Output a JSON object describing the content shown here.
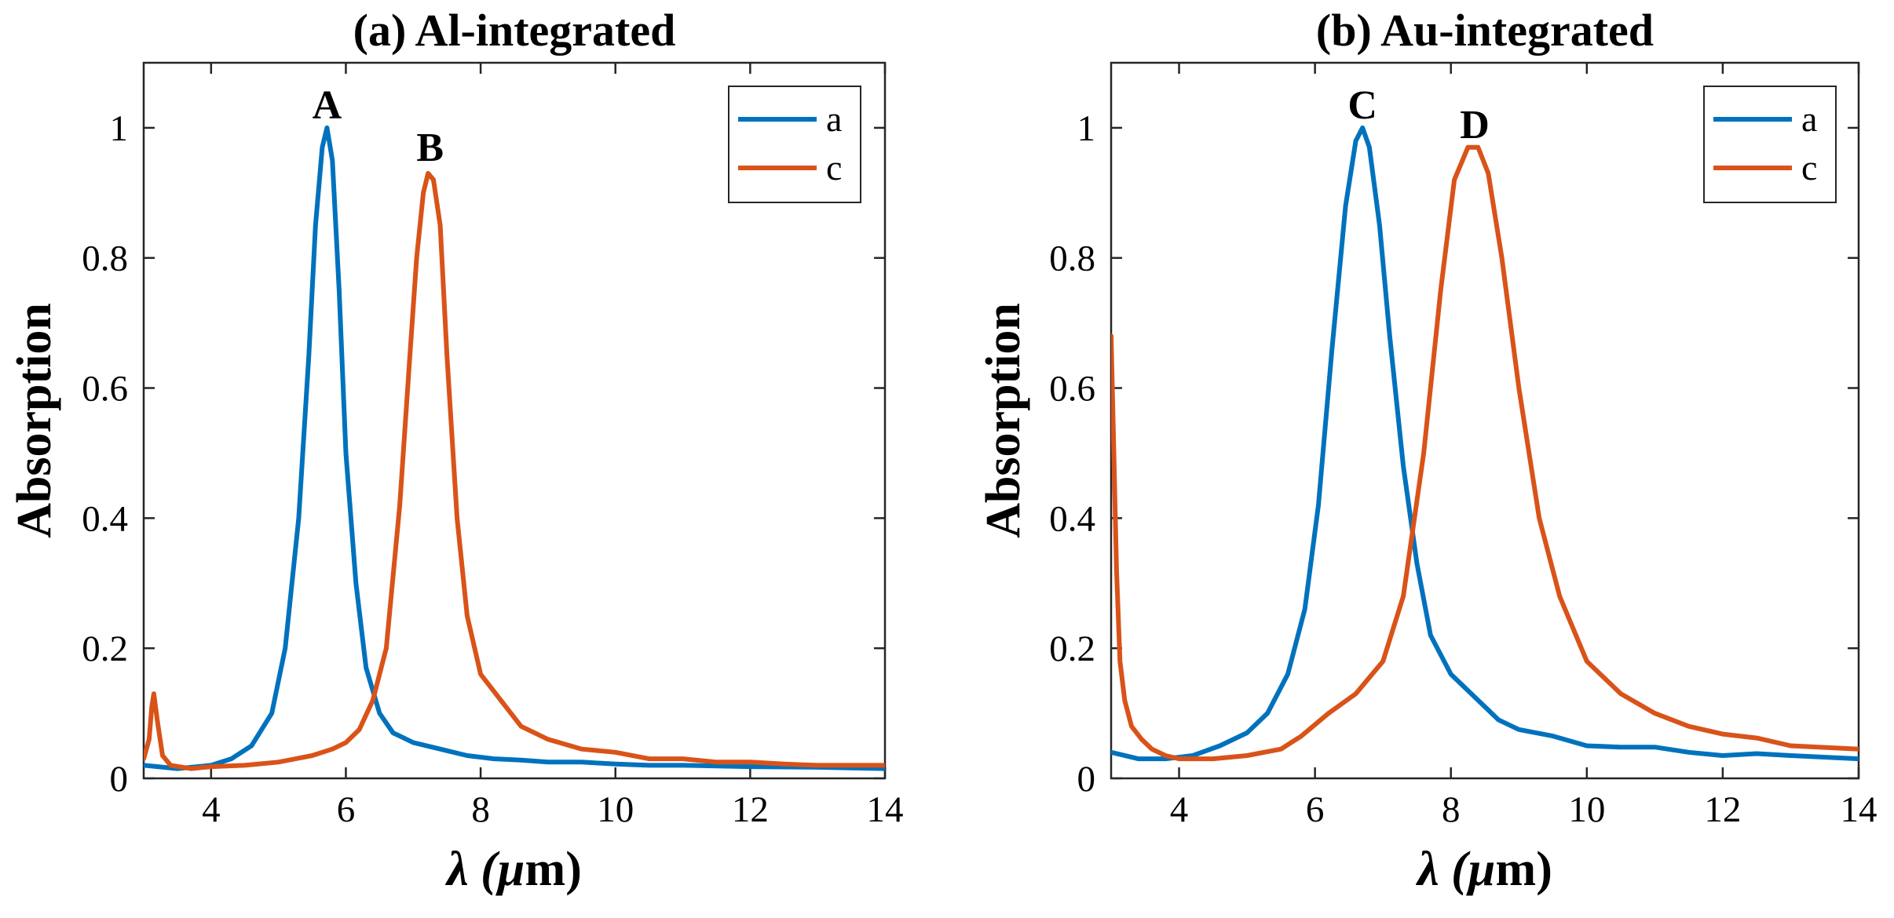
{
  "chart_data": [
    {
      "type": "line",
      "title": "(a) Al-integrated",
      "xlabel": "λ (µm)",
      "xlabel_parts": {
        "symbol": "λ",
        "unit": "(µm)"
      },
      "ylabel": "Absorption",
      "xlim": [
        3,
        14
      ],
      "ylim": [
        0,
        1.1
      ],
      "xticks": [
        4,
        6,
        8,
        10,
        12,
        14
      ],
      "xtick_labels": [
        "4",
        "6",
        "8",
        "10",
        "12",
        "14"
      ],
      "yticks": [
        0,
        0.2,
        0.4,
        0.6,
        0.8,
        1
      ],
      "ytick_labels": [
        "0",
        "0.2",
        "0.4",
        "0.6",
        "0.8",
        "1"
      ],
      "legend": {
        "position": "top-right",
        "entries": [
          "a",
          "c"
        ]
      },
      "series": [
        {
          "name": "a",
          "color": "#0072BD",
          "x": [
            3.0,
            3.5,
            4.0,
            4.3,
            4.6,
            4.9,
            5.1,
            5.3,
            5.45,
            5.55,
            5.65,
            5.72,
            5.8,
            5.9,
            6.0,
            6.15,
            6.3,
            6.5,
            6.7,
            7.0,
            7.4,
            7.8,
            8.2,
            8.6,
            9.0,
            9.5,
            10.0,
            10.5,
            11.0,
            12.0,
            13.0,
            14.0
          ],
          "y": [
            0.02,
            0.015,
            0.02,
            0.03,
            0.05,
            0.1,
            0.2,
            0.4,
            0.65,
            0.85,
            0.97,
            1.0,
            0.95,
            0.75,
            0.5,
            0.3,
            0.17,
            0.1,
            0.07,
            0.055,
            0.045,
            0.035,
            0.03,
            0.028,
            0.025,
            0.025,
            0.022,
            0.02,
            0.02,
            0.018,
            0.017,
            0.015
          ]
        },
        {
          "name": "c",
          "color": "#D95319",
          "x": [
            3.0,
            3.08,
            3.12,
            3.15,
            3.2,
            3.28,
            3.4,
            3.7,
            4.0,
            4.5,
            5.0,
            5.5,
            5.8,
            6.0,
            6.2,
            6.4,
            6.6,
            6.8,
            6.95,
            7.05,
            7.15,
            7.22,
            7.3,
            7.4,
            7.5,
            7.65,
            7.8,
            8.0,
            8.3,
            8.6,
            9.0,
            9.5,
            10.0,
            10.5,
            11.0,
            11.5,
            12.0,
            12.5,
            13.0,
            14.0
          ],
          "y": [
            0.03,
            0.06,
            0.11,
            0.13,
            0.09,
            0.035,
            0.02,
            0.015,
            0.018,
            0.02,
            0.025,
            0.035,
            0.045,
            0.055,
            0.075,
            0.12,
            0.2,
            0.42,
            0.65,
            0.8,
            0.9,
            0.93,
            0.92,
            0.85,
            0.65,
            0.4,
            0.25,
            0.16,
            0.12,
            0.08,
            0.06,
            0.045,
            0.04,
            0.03,
            0.03,
            0.025,
            0.025,
            0.022,
            0.02,
            0.02
          ]
        }
      ],
      "annotations": [
        {
          "text": "A",
          "x": 5.72,
          "y": 1.0
        },
        {
          "text": "B",
          "x": 7.25,
          "y": 0.935
        }
      ]
    },
    {
      "type": "line",
      "title": "(b) Au-integrated",
      "xlabel": "λ (µm)",
      "xlabel_parts": {
        "symbol": "λ",
        "unit": "(µm)"
      },
      "ylabel": "Absorption",
      "xlim": [
        3,
        14
      ],
      "ylim": [
        0,
        1.1
      ],
      "xticks": [
        4,
        6,
        8,
        10,
        12,
        14
      ],
      "xtick_labels": [
        "4",
        "6",
        "8",
        "10",
        "12",
        "14"
      ],
      "yticks": [
        0,
        0.2,
        0.4,
        0.6,
        0.8,
        1
      ],
      "ytick_labels": [
        "0",
        "0.2",
        "0.4",
        "0.6",
        "0.8",
        "1"
      ],
      "legend": {
        "position": "top-right",
        "entries": [
          "a",
          "c"
        ]
      },
      "series": [
        {
          "name": "a",
          "color": "#0072BD",
          "x": [
            3.0,
            3.4,
            3.8,
            4.2,
            4.6,
            5.0,
            5.3,
            5.6,
            5.85,
            6.05,
            6.25,
            6.45,
            6.6,
            6.7,
            6.8,
            6.95,
            7.1,
            7.3,
            7.5,
            7.7,
            8.0,
            8.3,
            8.7,
            9.0,
            9.5,
            10.0,
            10.5,
            11.0,
            11.5,
            12.0,
            12.5,
            13.0,
            14.0
          ],
          "y": [
            0.04,
            0.03,
            0.03,
            0.035,
            0.05,
            0.07,
            0.1,
            0.16,
            0.26,
            0.42,
            0.66,
            0.88,
            0.98,
            1.0,
            0.97,
            0.85,
            0.68,
            0.48,
            0.33,
            0.22,
            0.16,
            0.13,
            0.09,
            0.075,
            0.065,
            0.05,
            0.048,
            0.048,
            0.04,
            0.035,
            0.038,
            0.035,
            0.03
          ]
        },
        {
          "name": "c",
          "color": "#D95319",
          "x": [
            3.0,
            3.04,
            3.08,
            3.13,
            3.2,
            3.3,
            3.45,
            3.6,
            3.8,
            4.0,
            4.5,
            5.0,
            5.5,
            5.8,
            6.2,
            6.6,
            7.0,
            7.3,
            7.6,
            7.85,
            8.05,
            8.25,
            8.4,
            8.55,
            8.75,
            9.0,
            9.3,
            9.6,
            10.0,
            10.5,
            11.0,
            11.5,
            12.0,
            12.5,
            13.0,
            14.0
          ],
          "y": [
            0.68,
            0.5,
            0.32,
            0.18,
            0.12,
            0.08,
            0.06,
            0.045,
            0.035,
            0.03,
            0.03,
            0.035,
            0.045,
            0.065,
            0.1,
            0.13,
            0.18,
            0.28,
            0.5,
            0.75,
            0.92,
            0.97,
            0.97,
            0.93,
            0.8,
            0.6,
            0.4,
            0.28,
            0.18,
            0.13,
            0.1,
            0.08,
            0.068,
            0.062,
            0.05,
            0.045
          ]
        }
      ],
      "annotations": [
        {
          "text": "C",
          "x": 6.7,
          "y": 1.0
        },
        {
          "text": "D",
          "x": 8.35,
          "y": 0.97
        }
      ]
    }
  ]
}
